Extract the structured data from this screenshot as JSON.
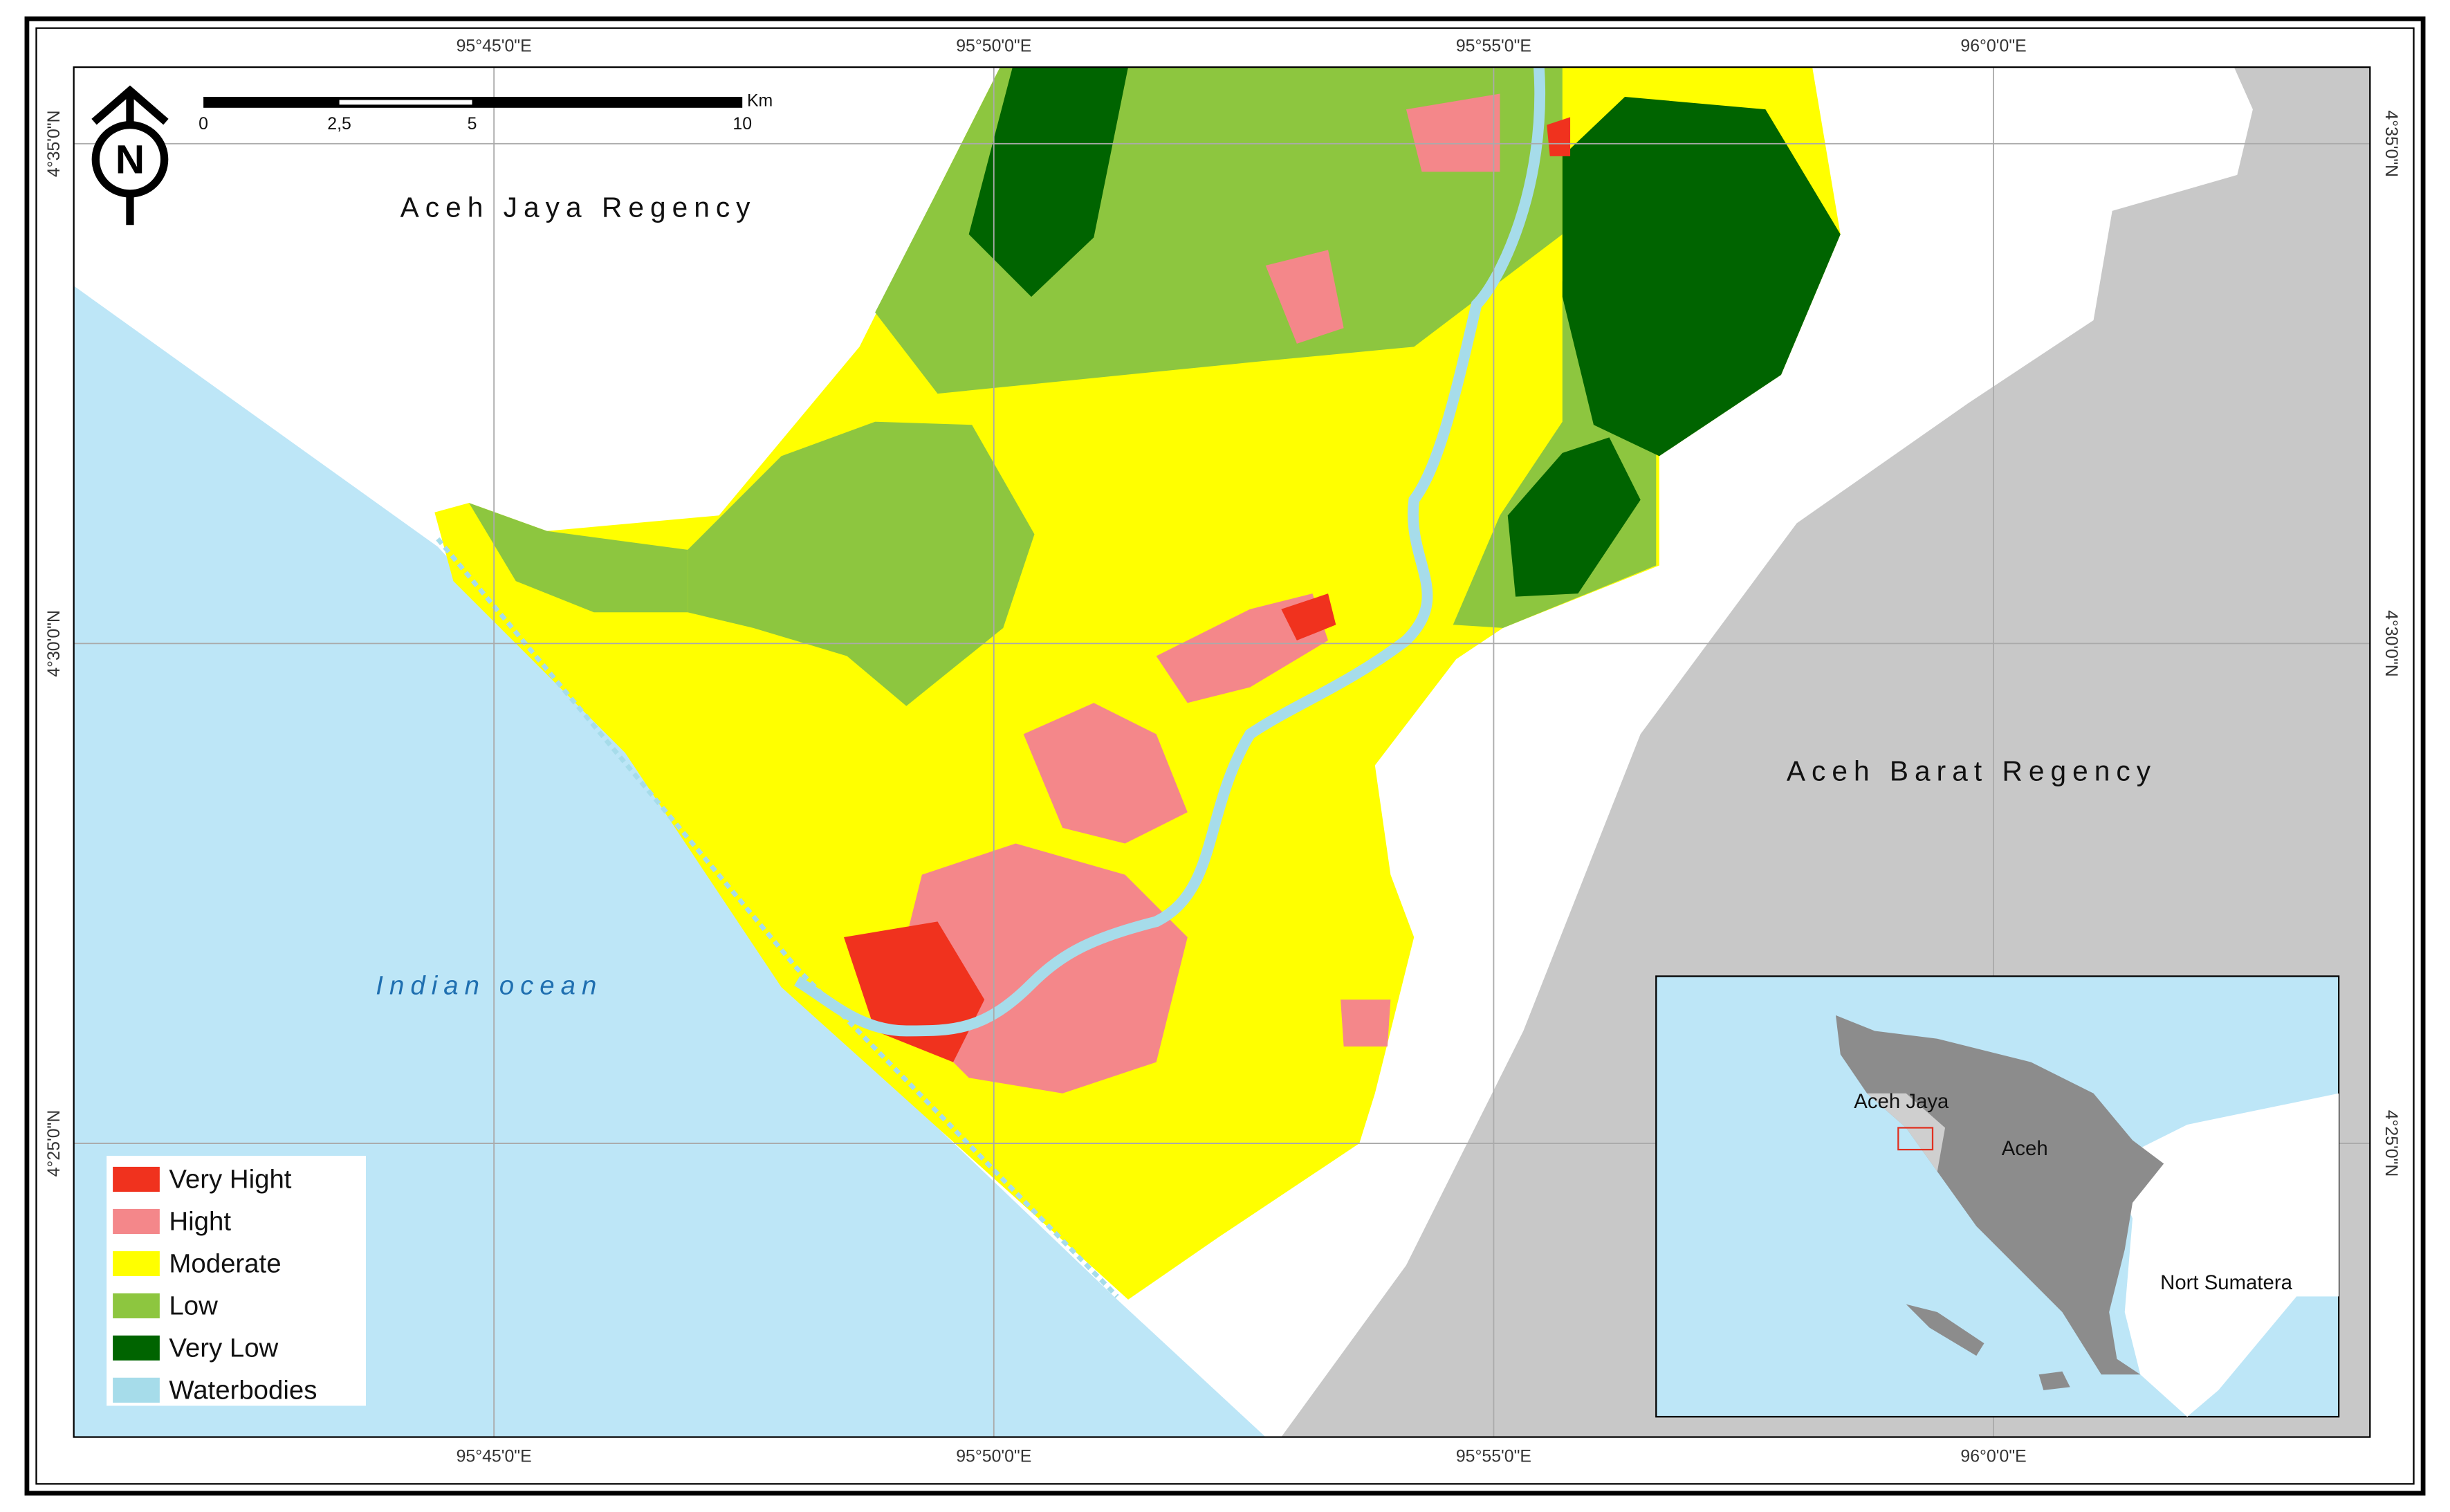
{
  "map": {
    "region_labels": [
      "Aceh Jaya Regency",
      "Aceh Barat Regency",
      "Indian ocean"
    ],
    "longitude_labels": [
      "95°45'0\"E",
      "95°50'0\"E",
      "95°55'0\"E",
      "96°0'0\"E"
    ],
    "latitude_labels": [
      "4°35'0\"N",
      "4°30'0\"N",
      "4°25'0\"N"
    ],
    "north_arrow": "N",
    "scale_bar": {
      "ticks": [
        "0",
        "2,5",
        "5",
        "10"
      ],
      "unit": "Km"
    },
    "legend": [
      {
        "label": "Very Hight",
        "color": "#f0321e"
      },
      {
        "label": "Hight",
        "color": "#f4878a"
      },
      {
        "label": "Moderate",
        "color": "#ffff00"
      },
      {
        "label": "Low",
        "color": "#8dc63f"
      },
      {
        "label": "Very Low",
        "color": "#006400"
      },
      {
        "label": "Waterbodies",
        "color": "#a6dcea"
      }
    ],
    "inset": {
      "labels": [
        "Aceh Jaya",
        "Aceh",
        "Nort Sumatera"
      ]
    }
  }
}
